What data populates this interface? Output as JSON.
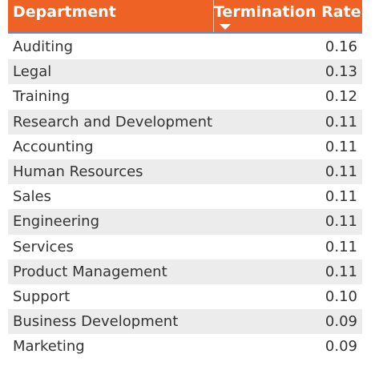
{
  "table": {
    "headers": {
      "department": "Department",
      "termination_rate": "Termination Rate"
    },
    "sort": {
      "column": "termination_rate",
      "direction": "descending",
      "icon": "sort-descending-icon"
    },
    "colors": {
      "header_background": "#ee6325",
      "header_text": "#ffffff",
      "alt_row_background": "#ececec",
      "header_underline": "#5a8fd6"
    },
    "rows": [
      {
        "department": "Auditing",
        "rate": "0.16"
      },
      {
        "department": "Legal",
        "rate": "0.13"
      },
      {
        "department": "Training",
        "rate": "0.12"
      },
      {
        "department": "Research and Development",
        "rate": "0.11"
      },
      {
        "department": "Accounting",
        "rate": "0.11"
      },
      {
        "department": "Human Resources",
        "rate": "0.11"
      },
      {
        "department": "Sales",
        "rate": "0.11"
      },
      {
        "department": "Engineering",
        "rate": "0.11"
      },
      {
        "department": "Services",
        "rate": "0.11"
      },
      {
        "department": "Product Management",
        "rate": "0.11"
      },
      {
        "department": "Support",
        "rate": "0.10"
      },
      {
        "department": "Business Development",
        "rate": "0.09"
      },
      {
        "department": "Marketing",
        "rate": "0.09"
      }
    ]
  }
}
